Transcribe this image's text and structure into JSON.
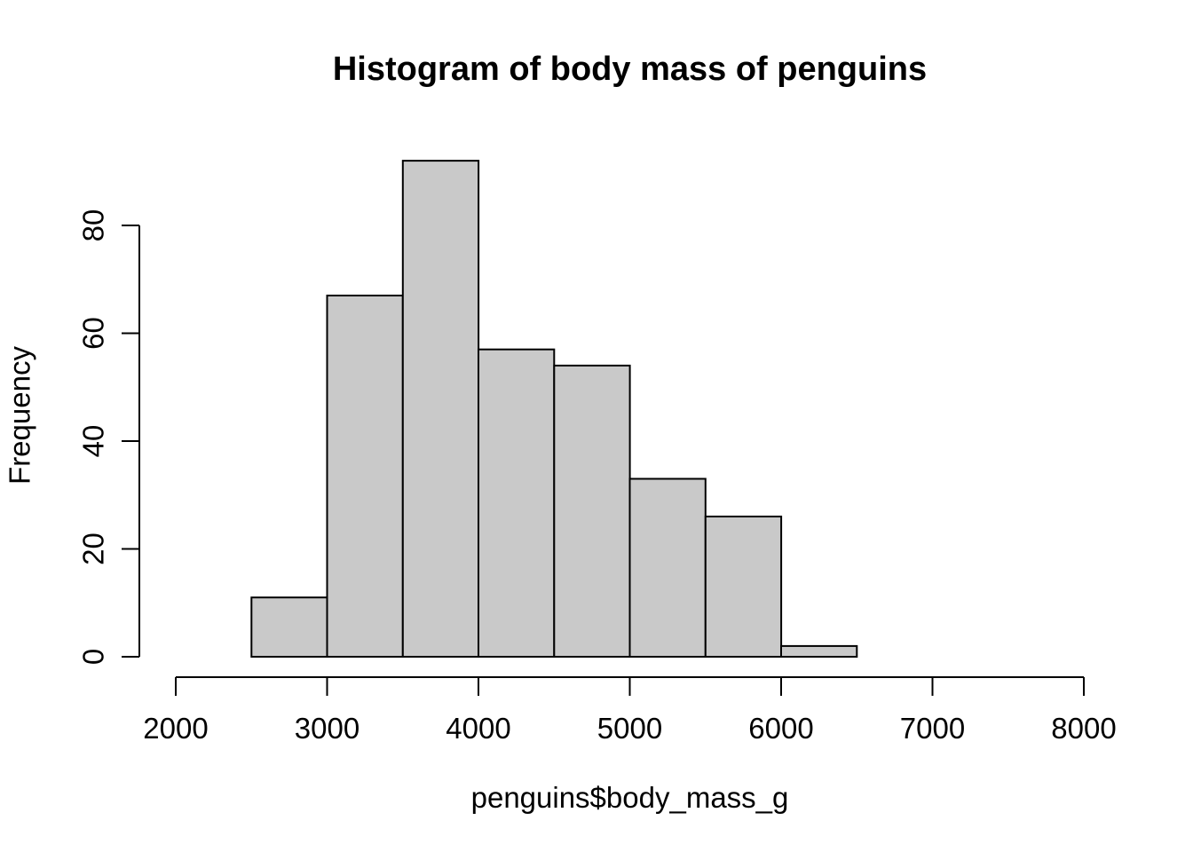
{
  "page": {
    "background": "#ffffff",
    "text_color": "#000000"
  },
  "chart_data": {
    "type": "bar",
    "chart_kind": "histogram",
    "title": "Histogram of body mass of penguins",
    "xlabel": "penguins$body_mass_g",
    "ylabel": "Frequency",
    "bin_edges": [
      2500,
      3000,
      3500,
      4000,
      4500,
      5000,
      5500,
      6000,
      6500
    ],
    "values": [
      11,
      67,
      92,
      57,
      54,
      33,
      26,
      2
    ],
    "xlim": [
      2000,
      8000
    ],
    "ylim": [
      0,
      80
    ],
    "x_ticks": [
      2000,
      3000,
      4000,
      5000,
      6000,
      7000,
      8000
    ],
    "y_ticks": [
      0,
      20,
      40,
      60,
      80
    ],
    "grid": false,
    "legend": "none",
    "bar_fill": "#c9c9c9",
    "bar_stroke": "#000000",
    "axis_color": "#000000"
  }
}
